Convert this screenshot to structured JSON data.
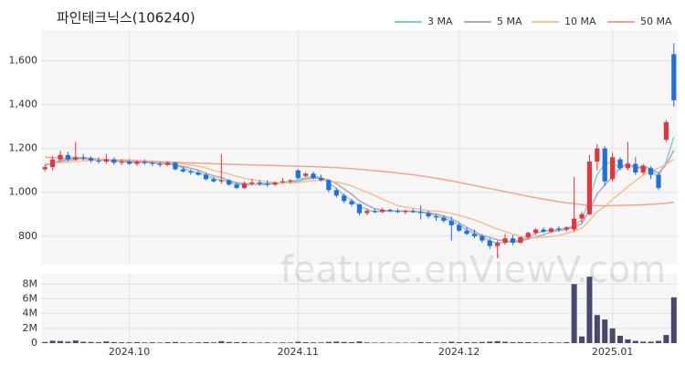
{
  "chart_data": [
    {
      "type": "candlestick",
      "title": "파인테크닉스(106240)",
      "categories": [
        null,
        null,
        null,
        null,
        null,
        null,
        null,
        null,
        null,
        null,
        null,
        "2024.10",
        null,
        null,
        null,
        null,
        null,
        null,
        null,
        null,
        null,
        null,
        null,
        null,
        null,
        null,
        null,
        null,
        null,
        null,
        null,
        null,
        null,
        "2024.11",
        null,
        null,
        null,
        null,
        null,
        null,
        null,
        null,
        null,
        null,
        null,
        null,
        null,
        null,
        null,
        null,
        null,
        null,
        null,
        null,
        "2024.12",
        null,
        null,
        null,
        null,
        null,
        null,
        null,
        null,
        null,
        null,
        null,
        null,
        null,
        null,
        null,
        null,
        null,
        null,
        null,
        "2025.01",
        null,
        null,
        null,
        null,
        null,
        null,
        null,
        null
      ],
      "open": [
        1105,
        1115,
        1150,
        1170,
        1150,
        1160,
        1155,
        1145,
        1140,
        1150,
        1135,
        1140,
        1130,
        1140,
        1135,
        1130,
        1125,
        1135,
        1105,
        1095,
        1090,
        1080,
        1060,
        1050,
        1055,
        1035,
        1020,
        1040,
        1045,
        1040,
        1035,
        1045,
        1050,
        1100,
        1075,
        1085,
        1065,
        1055,
        1010,
        985,
        960,
        945,
        905,
        915,
        910,
        920,
        915,
        910,
        915,
        910,
        905,
        890,
        885,
        870,
        850,
        825,
        810,
        800,
        780,
        755,
        770,
        790,
        770,
        795,
        815,
        830,
        820,
        835,
        830,
        830,
        880,
        900,
        1140,
        1200,
        1060,
        1150,
        1110,
        1130,
        1090,
        1110,
        1080,
        1240,
        1630
      ],
      "high": [
        1125,
        1165,
        1190,
        1185,
        1230,
        1175,
        1165,
        1160,
        1175,
        1160,
        1150,
        1150,
        1145,
        1150,
        1140,
        1140,
        1140,
        1140,
        1115,
        1105,
        1100,
        1090,
        1070,
        1175,
        1060,
        1045,
        1050,
        1060,
        1055,
        1055,
        1050,
        1065,
        1060,
        1105,
        1090,
        1095,
        1080,
        1060,
        1020,
        995,
        970,
        950,
        925,
        925,
        930,
        925,
        925,
        920,
        925,
        940,
        915,
        900,
        895,
        890,
        860,
        840,
        830,
        810,
        790,
        780,
        810,
        805,
        800,
        820,
        835,
        840,
        840,
        845,
        845,
        1070,
        910,
        1170,
        1220,
        1210,
        1180,
        1160,
        1230,
        1160,
        1130,
        1120,
        1090,
        1330,
        1680
      ],
      "low": [
        1095,
        1100,
        1140,
        1140,
        1145,
        1145,
        1135,
        1130,
        1130,
        1125,
        1125,
        1125,
        1120,
        1125,
        1120,
        1115,
        1120,
        1100,
        1090,
        1080,
        1075,
        1055,
        1045,
        1040,
        1030,
        1015,
        1015,
        1030,
        1030,
        1025,
        1030,
        1040,
        1040,
        1060,
        1070,
        1060,
        1050,
        1000,
        975,
        950,
        935,
        895,
        895,
        905,
        905,
        910,
        905,
        900,
        905,
        875,
        880,
        870,
        860,
        780,
        820,
        805,
        790,
        770,
        740,
        700,
        760,
        760,
        765,
        785,
        805,
        815,
        815,
        820,
        820,
        820,
        860,
        895,
        1100,
        1030,
        1050,
        1100,
        1100,
        1080,
        1080,
        1060,
        1010,
        1230,
        1390
      ],
      "close": [
        1115,
        1150,
        1170,
        1150,
        1160,
        1155,
        1145,
        1140,
        1150,
        1135,
        1140,
        1130,
        1140,
        1135,
        1130,
        1125,
        1135,
        1105,
        1095,
        1090,
        1080,
        1060,
        1050,
        1055,
        1035,
        1020,
        1040,
        1045,
        1040,
        1035,
        1045,
        1050,
        1055,
        1065,
        1085,
        1065,
        1055,
        1010,
        985,
        960,
        945,
        905,
        915,
        910,
        920,
        915,
        910,
        915,
        910,
        905,
        890,
        885,
        870,
        850,
        825,
        810,
        800,
        780,
        755,
        770,
        790,
        770,
        795,
        815,
        830,
        820,
        835,
        830,
        840,
        880,
        900,
        1140,
        1200,
        1050,
        1160,
        1110,
        1130,
        1090,
        1120,
        1080,
        1020,
        1320,
        1420
      ],
      "up_color": "#e8323c",
      "down_color": "#1f6fdc",
      "ylim": [
        670,
        1740
      ],
      "yticks": [
        800,
        {
          "value": 1000,
          "label": "1,000"
        },
        {
          "value": 1200,
          "label": "1,200"
        },
        {
          "value": 1400,
          "label": "1,400"
        },
        {
          "value": 1600,
          "label": "1,600"
        }
      ],
      "grid": true,
      "legend": "top-right",
      "series": [
        {
          "name": "3 MA",
          "color": "#7fd3c9",
          "values": [
            1120,
            1135,
            1145,
            1157,
            1160,
            1155,
            1153,
            1147,
            1145,
            1142,
            1142,
            1135,
            1137,
            1135,
            1135,
            1130,
            1130,
            1122,
            1112,
            1097,
            1088,
            1077,
            1063,
            1055,
            1047,
            1037,
            1032,
            1035,
            1042,
            1040,
            1040,
            1043,
            1050,
            1057,
            1068,
            1072,
            1068,
            1043,
            1017,
            985,
            963,
            937,
            922,
            910,
            915,
            915,
            915,
            913,
            912,
            910,
            902,
            893,
            882,
            868,
            848,
            828,
            812,
            797,
            778,
            768,
            772,
            777,
            785,
            793,
            813,
            822,
            828,
            828,
            835,
            850,
            873,
            973,
            1080,
            1130,
            1137,
            1107,
            1133,
            1110,
            1113,
            1097,
            1073,
            1140,
            1253
          ]
        },
        {
          "name": "5 MA",
          "color": "#b7a0cc",
          "values": [
            1125,
            1130,
            1140,
            1148,
            1149,
            1157,
            1156,
            1150,
            1150,
            1145,
            1142,
            1139,
            1139,
            1136,
            1135,
            1132,
            1133,
            1126,
            1118,
            1110,
            1101,
            1086,
            1075,
            1067,
            1054,
            1044,
            1040,
            1039,
            1036,
            1036,
            1041,
            1043,
            1045,
            1050,
            1060,
            1064,
            1065,
            1056,
            1040,
            1015,
            991,
            961,
            942,
            925,
            919,
            913,
            914,
            914,
            914,
            911,
            906,
            901,
            892,
            880,
            860,
            840,
            821,
            803,
            794,
            783,
            779,
            773,
            776,
            788,
            796,
            806,
            819,
            826,
            831,
            841,
            857,
            918,
            992,
            1034,
            1070,
            1112,
            1130,
            1108,
            1122,
            1106,
            1088,
            1126,
            1192
          ]
        },
        {
          "name": "10 MA",
          "color": "#f3c28e",
          "values": [
            1130,
            1132,
            1135,
            1138,
            1140,
            1143,
            1145,
            1147,
            1148,
            1147,
            1149,
            1147,
            1146,
            1144,
            1142,
            1139,
            1138,
            1134,
            1130,
            1124,
            1119,
            1111,
            1100,
            1092,
            1083,
            1073,
            1063,
            1058,
            1053,
            1047,
            1044,
            1043,
            1043,
            1044,
            1049,
            1053,
            1055,
            1052,
            1047,
            1039,
            1029,
            1014,
            1000,
            985,
            969,
            954,
            939,
            932,
            927,
            921,
            916,
            914,
            910,
            904,
            895,
            885,
            874,
            861,
            846,
            832,
            821,
            809,
            800,
            796,
            794,
            795,
            798,
            803,
            812,
            823,
            836,
            871,
            911,
            935,
            968,
            996,
            1026,
            1052,
            1078,
            1098,
            1110,
            1128,
            1150
          ]
        },
        {
          "name": "50 MA",
          "color": "#f4a48e",
          "values": [
            1160,
            1158,
            1157,
            1155,
            1154,
            1152,
            1151,
            1150,
            1148,
            1147,
            1146,
            1145,
            1144,
            1142,
            1141,
            1140,
            1138,
            1137,
            1135,
            1134,
            1133,
            1132,
            1130,
            1129,
            1128,
            1127,
            1126,
            1125,
            1124,
            1123,
            1122,
            1121,
            1120,
            1119,
            1118,
            1117,
            1116,
            1114,
            1112,
            1110,
            1108,
            1105,
            1102,
            1099,
            1096,
            1092,
            1088,
            1084,
            1080,
            1075,
            1070,
            1064,
            1058,
            1052,
            1045,
            1038,
            1031,
            1024,
            1017,
            1010,
            1003,
            996,
            989,
            982,
            975,
            969,
            963,
            957,
            952,
            948,
            944,
            941,
            939,
            938,
            939,
            940,
            941,
            942,
            943,
            945,
            947,
            950,
            955
          ]
        }
      ]
    },
    {
      "type": "bar",
      "color": "#46496b",
      "values": [
        150000,
        320000,
        280000,
        200000,
        350000,
        180000,
        150000,
        120000,
        220000,
        140000,
        110000,
        100000,
        130000,
        90000,
        110000,
        80000,
        120000,
        150000,
        100000,
        90000,
        110000,
        130000,
        100000,
        260000,
        150000,
        120000,
        140000,
        90000,
        80000,
        100000,
        70000,
        90000,
        80000,
        180000,
        120000,
        100000,
        90000,
        160000,
        200000,
        150000,
        130000,
        220000,
        90000,
        70000,
        80000,
        60000,
        70000,
        60000,
        70000,
        140000,
        110000,
        90000,
        100000,
        180000,
        120000,
        130000,
        110000,
        150000,
        200000,
        260000,
        180000,
        120000,
        140000,
        130000,
        100000,
        90000,
        110000,
        80000,
        120000,
        8000000,
        900000,
        9000000,
        3800000,
        3200000,
        2000000,
        1000000,
        500000,
        300000,
        200000,
        200000,
        300000,
        1100000,
        6200000
      ],
      "ylim": [
        0,
        9400000
      ],
      "yticks": [
        0,
        {
          "value": 2000000,
          "label": "2M"
        },
        {
          "value": 4000000,
          "label": "4M"
        },
        {
          "value": 6000000,
          "label": "6M"
        },
        {
          "value": 8000000,
          "label": "8M"
        }
      ],
      "grid": true
    }
  ],
  "watermark": "feature.enViewV.com"
}
